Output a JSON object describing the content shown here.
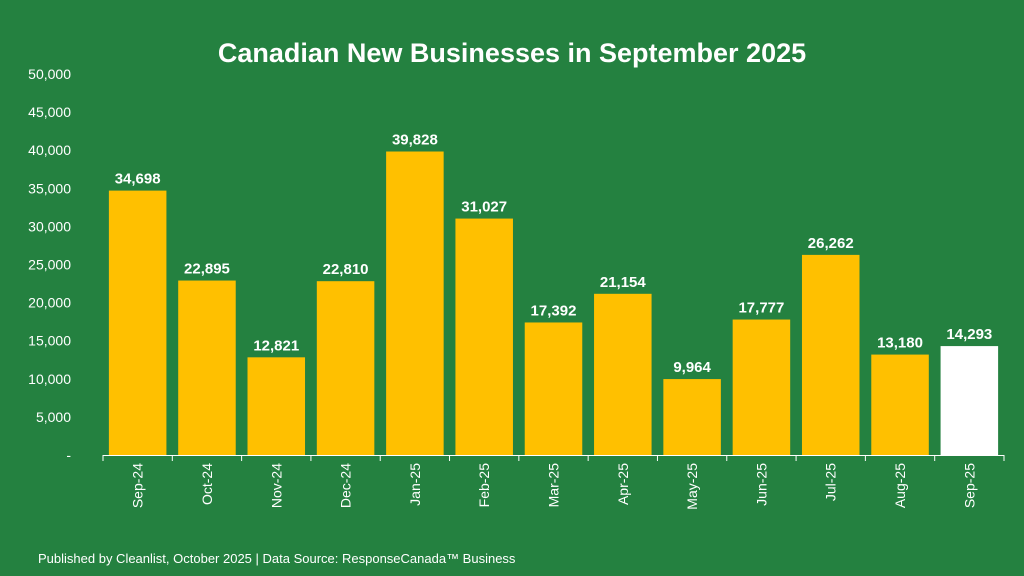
{
  "title": "Canadian New Businesses in September 2025",
  "footer": {
    "text": "Published by Cleanlist, October 2025 | Data Source: ResponseCanada™ Business"
  },
  "colors": {
    "background": "#248140",
    "bar": "#FFC000",
    "highlight_bar": "#FFFFFF",
    "text": "#FFFFFF"
  },
  "chart_data": {
    "type": "bar",
    "title": "Canadian New Businesses in September 2025",
    "xlabel": "",
    "ylabel": "",
    "categories": [
      "Sep-24",
      "Oct-24",
      "Nov-24",
      "Dec-24",
      "Jan-25",
      "Feb-25",
      "Mar-25",
      "Apr-25",
      "May-25",
      "Jun-25",
      "Jul-25",
      "Aug-25",
      "Sep-25"
    ],
    "values": [
      34698,
      22895,
      12821,
      22810,
      39828,
      31027,
      17392,
      21154,
      9964,
      17777,
      26262,
      13180,
      14293
    ],
    "value_labels": [
      "34,698",
      "22,895",
      "12,821",
      "22,810",
      "39,828",
      "31,027",
      "17,392",
      "21,154",
      "9,964",
      "17,777",
      "26,262",
      "13,180",
      "14,293"
    ],
    "highlight_category": "Sep-25",
    "ylim": [
      0,
      50000
    ],
    "yticks": [
      0,
      5000,
      10000,
      15000,
      20000,
      25000,
      30000,
      35000,
      40000,
      45000,
      50000
    ],
    "ytick_labels": [
      "-",
      "5,000",
      "10,000",
      "15,000",
      "20,000",
      "25,000",
      "30,000",
      "35,000",
      "40,000",
      "45,000",
      "50,000"
    ],
    "grid": false,
    "legend": "none"
  }
}
